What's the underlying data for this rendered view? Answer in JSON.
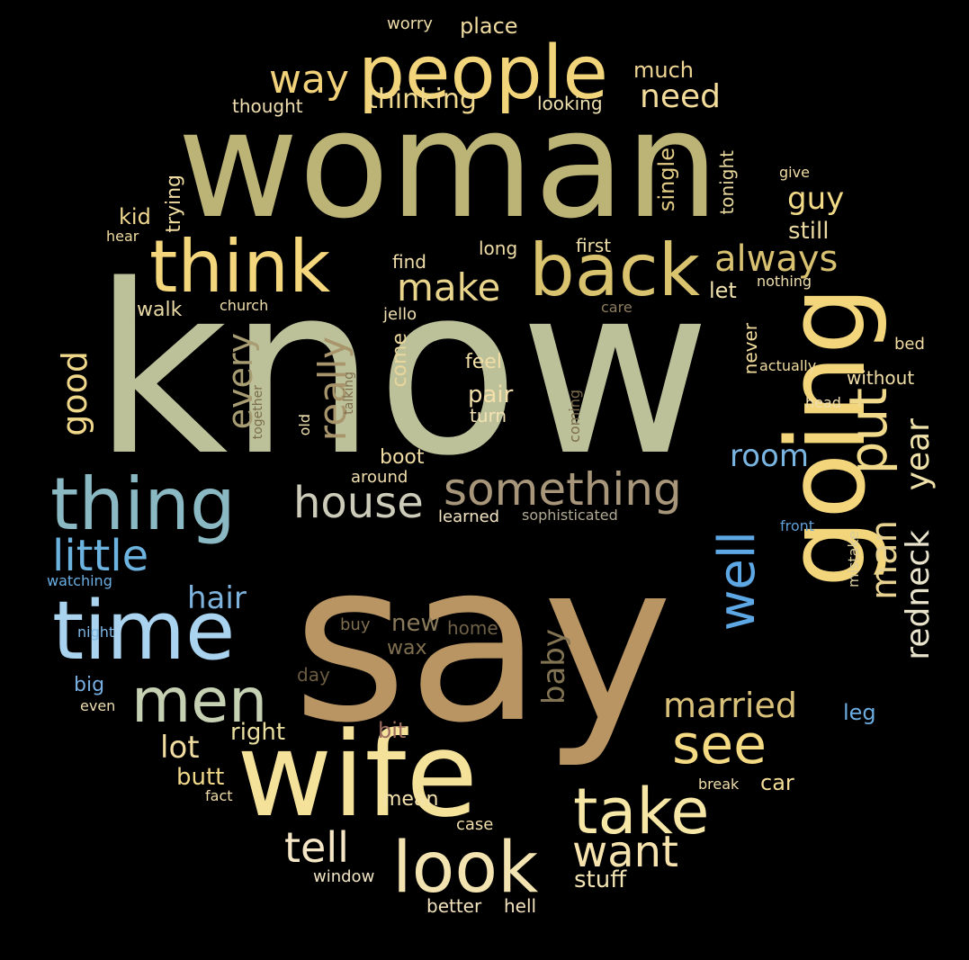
{
  "words": [
    {
      "text": "know",
      "color": "#bdc19a"
    },
    {
      "text": "woman",
      "color": "#bcb376"
    },
    {
      "text": "say",
      "color": "#b99564"
    },
    {
      "text": "going",
      "color": "#f3d57c"
    },
    {
      "text": "wife",
      "color": "#f4e19a"
    },
    {
      "text": "people",
      "color": "#f2d47a"
    },
    {
      "text": "time",
      "color": "#a9d3ee"
    },
    {
      "text": "think",
      "color": "#f4d67c"
    },
    {
      "text": "thing",
      "color": "#8ab9c3"
    },
    {
      "text": "back",
      "color": "#d9c36e"
    },
    {
      "text": "look",
      "color": "#f3e3b1"
    },
    {
      "text": "take",
      "color": "#f6e7a6"
    },
    {
      "text": "men",
      "color": "#c6d0b3"
    },
    {
      "text": "well",
      "color": "#5da8e4"
    },
    {
      "text": "see",
      "color": "#f5da84"
    },
    {
      "text": "something",
      "color": "#a8967b"
    },
    {
      "text": "house",
      "color": "#cdcbb9"
    },
    {
      "text": "put",
      "color": "#f1d98b"
    },
    {
      "text": "want",
      "color": "#f6e3ad"
    },
    {
      "text": "tell",
      "color": "#f5e7c6"
    },
    {
      "text": "little",
      "color": "#6cb3e0"
    },
    {
      "text": "make",
      "color": "#e8d48a"
    },
    {
      "text": "always",
      "color": "#d8c171"
    },
    {
      "text": "man",
      "color": "#e7d291"
    },
    {
      "text": "married",
      "color": "#d9c17a"
    },
    {
      "text": "redneck",
      "color": "#e8e2cb"
    },
    {
      "text": "year",
      "color": "#eee0a9"
    },
    {
      "text": "way",
      "color": "#f1d27a"
    },
    {
      "text": "really",
      "color": "#a8956c"
    },
    {
      "text": "every",
      "color": "#a89c73"
    },
    {
      "text": "good",
      "color": "#f0d88a"
    },
    {
      "text": "hair",
      "color": "#7db3dd"
    },
    {
      "text": "room",
      "color": "#7ab5e1"
    },
    {
      "text": "lot",
      "color": "#f2dda0"
    },
    {
      "text": "baby",
      "color": "#827452"
    },
    {
      "text": "guy",
      "color": "#f3da86"
    },
    {
      "text": "need",
      "color": "#f4dc9a"
    },
    {
      "text": "thinking",
      "color": "#f0d98f"
    },
    {
      "text": "still",
      "color": "#e9d8a0"
    },
    {
      "text": "single",
      "color": "#e3cc84"
    },
    {
      "text": "right",
      "color": "#eadf9f"
    },
    {
      "text": "butt",
      "color": "#f1d889"
    },
    {
      "text": "mean",
      "color": "#f4e2ad"
    },
    {
      "text": "car",
      "color": "#f3dd96"
    },
    {
      "text": "stuff",
      "color": "#f2e3b2"
    },
    {
      "text": "pair",
      "color": "#f3dfaa"
    },
    {
      "text": "new",
      "color": "#8a7a5c"
    },
    {
      "text": "wax",
      "color": "#7f6f4f"
    },
    {
      "text": "leg",
      "color": "#6aace0"
    },
    {
      "text": "boot",
      "color": "#f1dca3"
    },
    {
      "text": "come",
      "color": "#e8d69c"
    },
    {
      "text": "walk",
      "color": "#e9d9a4"
    },
    {
      "text": "kid",
      "color": "#f0d98f"
    },
    {
      "text": "feel",
      "color": "#f1dea5"
    },
    {
      "text": "turn",
      "color": "#f3e3b4"
    },
    {
      "text": "let",
      "color": "#efe0ac"
    },
    {
      "text": "much",
      "color": "#f0d693"
    },
    {
      "text": "place",
      "color": "#f1dca0"
    },
    {
      "text": "find",
      "color": "#f0dfaa"
    },
    {
      "text": "long",
      "color": "#efdca7"
    },
    {
      "text": "first",
      "color": "#f1dfa9"
    },
    {
      "text": "tonight",
      "color": "#e8d89e"
    },
    {
      "text": "trying",
      "color": "#f0dca0"
    },
    {
      "text": "looking",
      "color": "#efe0b0"
    },
    {
      "text": "thought",
      "color": "#f0dfb0"
    },
    {
      "text": "worry",
      "color": "#efdda9"
    },
    {
      "text": "never",
      "color": "#f2dd9d"
    },
    {
      "text": "without",
      "color": "#f1dfa7"
    },
    {
      "text": "bed",
      "color": "#f1dca3"
    },
    {
      "text": "big",
      "color": "#76afe0"
    },
    {
      "text": "home",
      "color": "#6f6147"
    },
    {
      "text": "day",
      "color": "#6b5c42"
    },
    {
      "text": "bit",
      "color": "#9a6b5e"
    },
    {
      "text": "better",
      "color": "#f3e3bd"
    },
    {
      "text": "hell",
      "color": "#f3e3bd"
    },
    {
      "text": "window",
      "color": "#f3e6c6"
    },
    {
      "text": "case",
      "color": "#f0deab"
    },
    {
      "text": "break",
      "color": "#f0deab"
    },
    {
      "text": "front",
      "color": "#5f9fd8"
    },
    {
      "text": "mistake",
      "color": "#d9cd9e"
    },
    {
      "text": "head",
      "color": "#efdfb0"
    },
    {
      "text": "actually",
      "color": "#f0dca0"
    },
    {
      "text": "nothing",
      "color": "#f0dfae"
    },
    {
      "text": "give",
      "color": "#f1dca3"
    },
    {
      "text": "hear",
      "color": "#f0dca0"
    },
    {
      "text": "church",
      "color": "#f1dfac"
    },
    {
      "text": "jello",
      "color": "#f0dfb0"
    },
    {
      "text": "care",
      "color": "#8d7d5c"
    },
    {
      "text": "old",
      "color": "#f3e3b3"
    },
    {
      "text": "together",
      "color": "#7a6c4e"
    },
    {
      "text": "talking",
      "color": "#7f6e4f"
    },
    {
      "text": "coming",
      "color": "#7b6b4c"
    },
    {
      "text": "around",
      "color": "#f1dfad"
    },
    {
      "text": "learned",
      "color": "#f3e5c4"
    },
    {
      "text": "sophisticated",
      "color": "#b0a994"
    },
    {
      "text": "watching",
      "color": "#6aaee2"
    },
    {
      "text": "night",
      "color": "#7db8e4"
    },
    {
      "text": "even",
      "color": "#f0dfb0"
    },
    {
      "text": "buy",
      "color": "#7f6f4f"
    },
    {
      "text": "fact",
      "color": "#f0dcaa"
    }
  ]
}
